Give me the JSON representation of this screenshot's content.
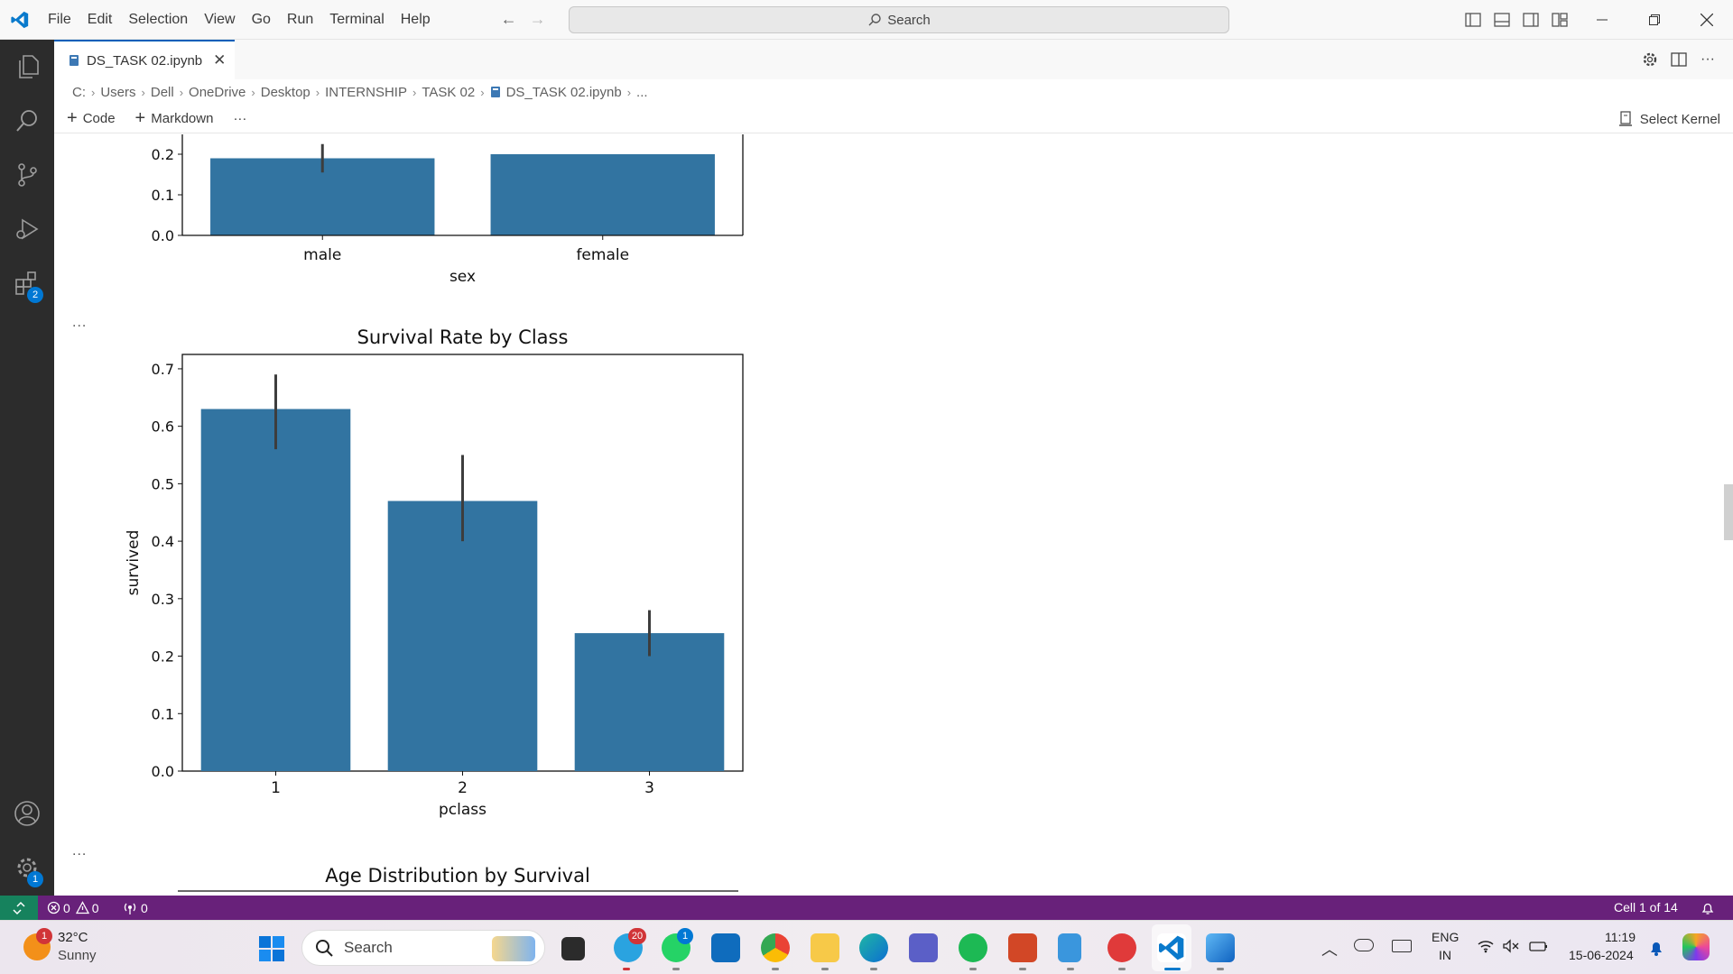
{
  "menu": {
    "items": [
      "File",
      "Edit",
      "Selection",
      "View",
      "Go",
      "Run",
      "Terminal",
      "Help"
    ]
  },
  "search": {
    "placeholder": "Search"
  },
  "tab": {
    "label": "DS_TASK 02.ipynb"
  },
  "breadcrumb": {
    "items": [
      "C:",
      "Users",
      "Dell",
      "OneDrive",
      "Desktop",
      "INTERNSHIP",
      "TASK 02",
      "DS_TASK 02.ipynb",
      "..."
    ]
  },
  "toolbar": {
    "code_label": "Code",
    "markdown_label": "Markdown",
    "more_label": "···",
    "kernel_label": "Select Kernel"
  },
  "activity": {
    "extensions_badge": "2",
    "settings_badge": "1"
  },
  "cells": {
    "ellipsis_1": "...",
    "ellipsis_2": "..."
  },
  "chart_data": [
    {
      "type": "bar",
      "title": "",
      "categories": [
        "male",
        "female"
      ],
      "xlabel": "sex",
      "ylabel": "",
      "values": [
        0.19,
        0.2
      ],
      "visible_yticks": [
        "0.2",
        "0.1",
        "0.0"
      ],
      "note": "partially visible, top cropped",
      "color": "#3274a1"
    },
    {
      "type": "bar",
      "title": "Survival Rate by Class",
      "categories": [
        "1",
        "2",
        "3"
      ],
      "xlabel": "pclass",
      "ylabel": "survived",
      "values": [
        0.63,
        0.47,
        0.24
      ],
      "error_bars": [
        [
          0.56,
          0.69
        ],
        [
          0.4,
          0.55
        ],
        [
          0.2,
          0.28
        ]
      ],
      "ylim": [
        0,
        0.725
      ],
      "yticks": [
        "0.0",
        "0.1",
        "0.2",
        "0.3",
        "0.4",
        "0.5",
        "0.6",
        "0.7"
      ],
      "color": "#3274a1"
    },
    {
      "type": "other",
      "title": "Age Distribution by Survival",
      "note": "only title visible"
    }
  ],
  "statusbar": {
    "errors": "0",
    "warnings": "0",
    "ports": "0",
    "cell_position": "Cell 1 of 14"
  },
  "taskbar": {
    "weather_temp": "32°C",
    "weather_desc": "Sunny",
    "weather_badge": "1",
    "search_label": "Search",
    "telegram_badge": "20",
    "whatsapp_badge": "1",
    "lang_top": "ENG",
    "lang_bottom": "IN",
    "time": "11:19",
    "date": "15-06-2024"
  }
}
